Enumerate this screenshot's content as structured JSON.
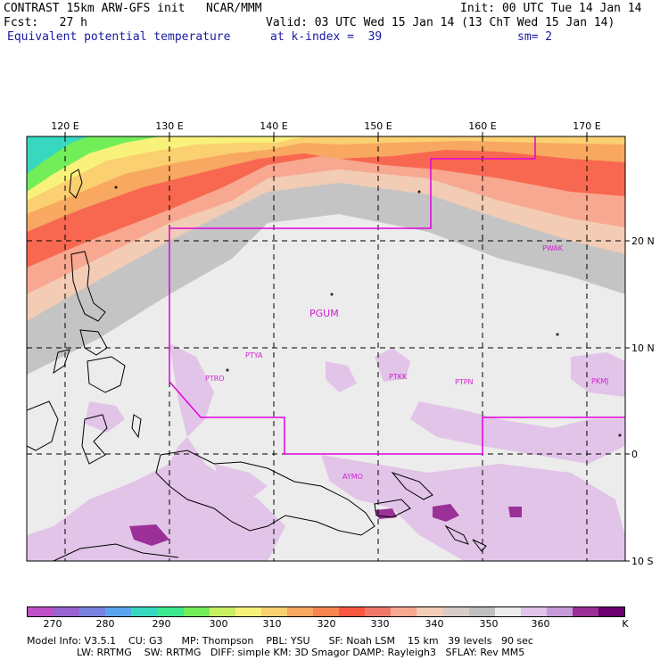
{
  "header": {
    "line1_left": "CONTRAST 15km ARW-GFS init   NCAR/MMM",
    "line1_right": "Init: 00 UTC Tue 14 Jan 14",
    "line2_left": "Fcst:   27 h",
    "line2_right": "Valid: 03 UTC Wed 15 Jan 14 (13 ChT Wed 15 Jan 14)",
    "line3_left": "Equivalent potential temperature",
    "line3_mid": "at k-index =  39",
    "line3_right": "sm= 2"
  },
  "map": {
    "lon_labels": [
      "120 E",
      "130 E",
      "140 E",
      "150 E",
      "160 E",
      "170 E"
    ],
    "lat_labels": [
      "20 N",
      "10 N",
      "0",
      "10 S"
    ],
    "stations": [
      "PGUM",
      "PTYA",
      "PTRO",
      "PTKK",
      "PTPN",
      "PKMJ",
      "PWAK",
      "AYMO"
    ]
  },
  "colorbar": {
    "colors": [
      "#c050c8",
      "#9a64d0",
      "#7a82e0",
      "#5aa6ee",
      "#38d8c0",
      "#3ee890",
      "#72ee58",
      "#c8f060",
      "#f8f27a",
      "#fad070",
      "#f8a860",
      "#f88450",
      "#f85840",
      "#f07868",
      "#f8a890",
      "#f2ccb4",
      "#d8ccc8",
      "#c0c0c0",
      "#ececec",
      "#e2c4e8",
      "#c89ad8",
      "#9a3098",
      "#6c0070"
    ],
    "labels": [
      "270",
      "280",
      "290",
      "300",
      "310",
      "320",
      "330",
      "340",
      "350",
      "360",
      "K"
    ]
  },
  "footer": {
    "line1": "Model Info: V3.5.1    CU: G3      MP: Thompson    PBL: YSU      SF: Noah LSM    15 km   39 levels   90 sec",
    "line2": "                LW: RRTMG    SW: RRTMG   DIFF: simple KM: 3D Smagor DAMP: Rayleigh3   SFLAY: Rev MM5"
  }
}
